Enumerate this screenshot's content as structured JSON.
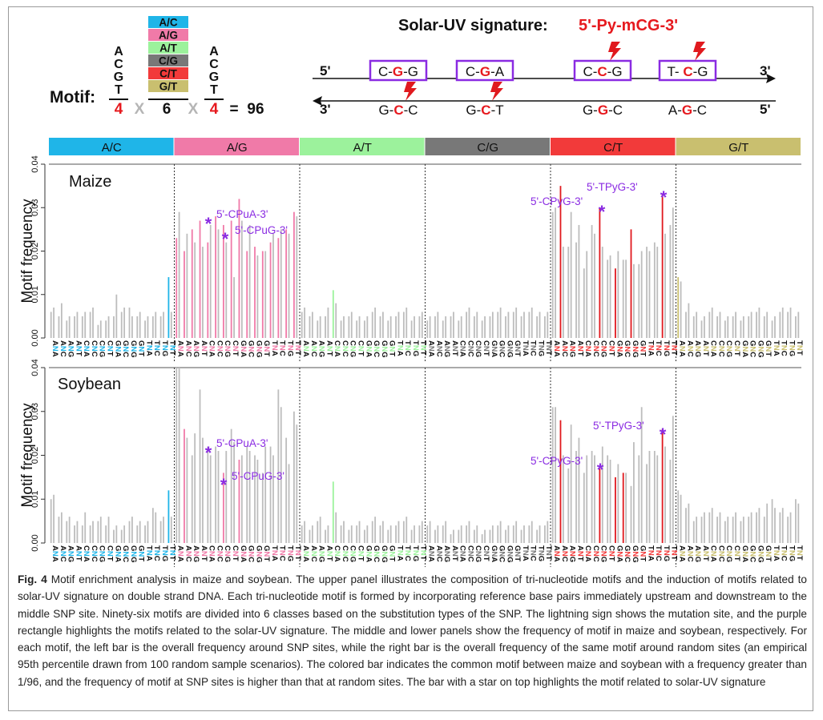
{
  "header": {
    "motif_label": "Motif:",
    "bases": [
      "A",
      "C",
      "G",
      "T"
    ],
    "count_left": "4",
    "times": "X",
    "count_mid": "6",
    "count_right": "4",
    "equals": "=",
    "total": "96",
    "solar_title": "Solar-UV signature:",
    "solar_motif": "5'-Py-mCG-3'",
    "top_strand_5": "5'",
    "top_strand_3": "3'",
    "bottom_strand_3": "3'",
    "bottom_strand_5": "5'",
    "top_motifs": [
      {
        "parts": [
          "C-",
          "G",
          "-G"
        ],
        "box": true,
        "bolt": false
      },
      {
        "parts": [
          "C-",
          "G",
          "-A"
        ],
        "box": true,
        "bolt": false
      },
      {
        "parts": [
          "C-",
          "C",
          "-G"
        ],
        "box": true,
        "bolt": true
      },
      {
        "parts": [
          "T- ",
          "C",
          "-G"
        ],
        "box": true,
        "bolt": true
      }
    ],
    "bottom_motifs": [
      {
        "parts": [
          "G-",
          "C",
          "-C"
        ],
        "bolt": true
      },
      {
        "parts": [
          "G-",
          "C",
          "-T"
        ],
        "bolt": true
      },
      {
        "parts": [
          "G-",
          "G",
          "-C"
        ],
        "bolt": false
      },
      {
        "parts": [
          "A-",
          "G",
          "-C"
        ],
        "bolt": false
      }
    ]
  },
  "colors": {
    "A/C": "#1fb5e8",
    "A/G": "#f07aa8",
    "A/T": "#9cf29c",
    "C/G": "#787878",
    "C/T": "#f23a3a",
    "G/T": "#c9bf6f",
    "grey_bar": "#bdbdbd",
    "red_bar": "#e0191e",
    "purple": "#8a2be2",
    "red_text": "#e6191e"
  },
  "chart_data": {
    "type": "bar",
    "classes": [
      "A/C",
      "A/G",
      "A/T",
      "C/G",
      "C/T",
      "G/T"
    ],
    "tick_labels": [
      "ANA",
      "ANC",
      "ANG",
      "ANT",
      "CNA",
      "CNC",
      "CNG",
      "CNT",
      "GNA",
      "GNC",
      "GNG",
      "GNT",
      "TNA",
      "TNC",
      "TNG",
      "TNT"
    ],
    "ylabel": "Motif frequency",
    "ylim": [
      0,
      0.04
    ],
    "yticks": [
      "0.00",
      "0.01",
      "0.02",
      "0.03",
      "0.04"
    ],
    "panels": [
      {
        "name": "Maize",
        "annotations": [
          "5'-CPuA-3'",
          "5'-CPuG-3'",
          "5'-CPyG-3'",
          "5'-TPyG-3'"
        ],
        "classes": [
          {
            "snp": [
              0.006,
              0.005,
              0.004,
              0.005,
              0.005,
              0.006,
              0.003,
              0.004,
              0.005,
              0.006,
              0.007,
              0.005,
              0.004,
              0.005,
              0.005,
              0.014
            ],
            "random": [
              0.007,
              0.008,
              0.005,
              0.006,
              0.006,
              0.007,
              0.004,
              0.005,
              0.01,
              0.007,
              0.005,
              0.006,
              0.005,
              0.006,
              0.006,
              0.006
            ]
          },
          {
            "snp": [
              0.023,
              0.02,
              0.025,
              0.027,
              0.022,
              0.028,
              0.026,
              0.027,
              0.032,
              0.02,
              0.021,
              0.02,
              0.022,
              0.023,
              0.025,
              0.029
            ],
            "random": [
              0.029,
              0.024,
              0.022,
              0.021,
              0.026,
              0.025,
              0.022,
              0.014,
              0.027,
              0.026,
              0.019,
              0.02,
              0.024,
              0.025,
              0.024,
              0.028
            ]
          },
          {
            "snp": [
              0.006,
              0.005,
              0.004,
              0.005,
              0.011,
              0.004,
              0.005,
              0.004,
              0.004,
              0.006,
              0.005,
              0.004,
              0.005,
              0.006,
              0.004,
              0.005
            ],
            "random": [
              0.007,
              0.006,
              0.005,
              0.007,
              0.008,
              0.005,
              0.006,
              0.005,
              0.005,
              0.007,
              0.006,
              0.005,
              0.006,
              0.007,
              0.005,
              0.006
            ]
          },
          {
            "snp": [
              0.004,
              0.005,
              0.004,
              0.005,
              0.004,
              0.006,
              0.005,
              0.004,
              0.005,
              0.006,
              0.005,
              0.006,
              0.005,
              0.006,
              0.005,
              0.005
            ],
            "random": [
              0.005,
              0.006,
              0.005,
              0.006,
              0.005,
              0.007,
              0.006,
              0.005,
              0.006,
              0.007,
              0.006,
              0.007,
              0.006,
              0.007,
              0.006,
              0.006
            ]
          },
          {
            "snp": [
              0.029,
              0.035,
              0.021,
              0.022,
              0.016,
              0.026,
              0.03,
              0.018,
              0.016,
              0.018,
              0.025,
              0.017,
              0.021,
              0.022,
              0.033,
              0.026
            ],
            "random": [
              0.03,
              0.021,
              0.029,
              0.026,
              0.02,
              0.024,
              0.021,
              0.019,
              0.02,
              0.018,
              0.017,
              0.02,
              0.02,
              0.021,
              0.024,
              0.03
            ]
          },
          {
            "snp": [
              0.014,
              0.006,
              0.005,
              0.004,
              0.006,
              0.005,
              0.004,
              0.005,
              0.004,
              0.005,
              0.006,
              0.005,
              0.004,
              0.006,
              0.006,
              0.005
            ],
            "random": [
              0.013,
              0.008,
              0.006,
              0.005,
              0.007,
              0.006,
              0.005,
              0.006,
              0.005,
              0.006,
              0.007,
              0.006,
              0.005,
              0.007,
              0.007,
              0.006
            ]
          }
        ],
        "highlight": [
          [
            false,
            false,
            false,
            false,
            false,
            false,
            false,
            false,
            false,
            false,
            false,
            false,
            false,
            false,
            false,
            true
          ],
          [
            true,
            true,
            true,
            true,
            true,
            true,
            true,
            true,
            true,
            true,
            true,
            true,
            true,
            true,
            true,
            true
          ],
          [
            false,
            false,
            false,
            false,
            true,
            false,
            false,
            false,
            false,
            false,
            false,
            false,
            false,
            false,
            false,
            false
          ],
          [
            false,
            false,
            false,
            false,
            false,
            false,
            false,
            false,
            false,
            false,
            false,
            false,
            false,
            false,
            false,
            false
          ],
          [
            false,
            true,
            false,
            false,
            false,
            false,
            true,
            false,
            true,
            false,
            true,
            false,
            false,
            false,
            true,
            false
          ],
          [
            true,
            false,
            false,
            false,
            false,
            false,
            false,
            false,
            false,
            false,
            false,
            false,
            false,
            false,
            false,
            false
          ]
        ]
      },
      {
        "name": "Soybean",
        "annotations": [
          "5'-CPuA-3'",
          "5'-CPuG-3'",
          "5'-CPyG-3'",
          "5'-TPyG-3'"
        ],
        "classes": [
          {
            "snp": [
              0.01,
              0.006,
              0.005,
              0.004,
              0.004,
              0.004,
              0.005,
              0.004,
              0.003,
              0.003,
              0.005,
              0.004,
              0.004,
              0.008,
              0.005,
              0.012
            ],
            "random": [
              0.011,
              0.007,
              0.006,
              0.005,
              0.007,
              0.005,
              0.006,
              0.006,
              0.004,
              0.004,
              0.006,
              0.005,
              0.005,
              0.007,
              0.006,
              0.006
            ]
          },
          {
            "snp": [
              0.04,
              0.026,
              0.02,
              0.035,
              0.022,
              0.022,
              0.016,
              0.026,
              0.019,
              0.022,
              0.02,
              0.016,
              0.022,
              0.035,
              0.024,
              0.03
            ],
            "random": [
              0.04,
              0.024,
              0.025,
              0.024,
              0.02,
              0.021,
              0.021,
              0.023,
              0.02,
              0.021,
              0.019,
              0.022,
              0.02,
              0.031,
              0.018,
              0.027
            ]
          },
          {
            "snp": [
              0.004,
              0.003,
              0.005,
              0.003,
              0.014,
              0.004,
              0.003,
              0.004,
              0.003,
              0.005,
              0.004,
              0.003,
              0.004,
              0.005,
              0.003,
              0.004
            ],
            "random": [
              0.005,
              0.004,
              0.006,
              0.004,
              0.007,
              0.005,
              0.004,
              0.005,
              0.004,
              0.006,
              0.005,
              0.004,
              0.005,
              0.006,
              0.004,
              0.005
            ]
          },
          {
            "snp": [
              0.004,
              0.003,
              0.004,
              0.002,
              0.003,
              0.004,
              0.003,
              0.002,
              0.003,
              0.004,
              0.003,
              0.004,
              0.003,
              0.004,
              0.003,
              0.004
            ],
            "random": [
              0.005,
              0.004,
              0.005,
              0.003,
              0.004,
              0.005,
              0.004,
              0.003,
              0.004,
              0.005,
              0.004,
              0.005,
              0.004,
              0.005,
              0.004,
              0.005
            ]
          },
          {
            "snp": [
              0.031,
              0.028,
              0.017,
              0.021,
              0.016,
              0.021,
              0.017,
              0.02,
              0.015,
              0.016,
              0.013,
              0.02,
              0.018,
              0.021,
              0.026,
              0.019
            ],
            "random": [
              0.031,
              0.02,
              0.027,
              0.024,
              0.02,
              0.02,
              0.022,
              0.019,
              0.018,
              0.016,
              0.023,
              0.031,
              0.021,
              0.02,
              0.022,
              0.029
            ]
          },
          {
            "snp": [
              0.012,
              0.008,
              0.005,
              0.006,
              0.007,
              0.006,
              0.005,
              0.006,
              0.005,
              0.006,
              0.007,
              0.006,
              0.01,
              0.007,
              0.006,
              0.01
            ],
            "random": [
              0.011,
              0.009,
              0.006,
              0.007,
              0.008,
              0.007,
              0.006,
              0.007,
              0.006,
              0.007,
              0.008,
              0.009,
              0.008,
              0.008,
              0.007,
              0.009
            ]
          }
        ],
        "highlight": [
          [
            false,
            false,
            false,
            false,
            false,
            false,
            false,
            false,
            false,
            false,
            false,
            false,
            false,
            false,
            false,
            true
          ],
          [
            false,
            true,
            false,
            false,
            false,
            false,
            true,
            false,
            true,
            false,
            false,
            false,
            false,
            false,
            false,
            false
          ],
          [
            false,
            false,
            false,
            false,
            true,
            false,
            false,
            false,
            false,
            false,
            false,
            false,
            false,
            false,
            false,
            false
          ],
          [
            false,
            false,
            false,
            false,
            false,
            false,
            false,
            false,
            false,
            false,
            false,
            false,
            false,
            false,
            false,
            false
          ],
          [
            false,
            true,
            false,
            false,
            false,
            false,
            true,
            false,
            true,
            true,
            false,
            false,
            false,
            false,
            true,
            false
          ],
          [
            false,
            false,
            false,
            false,
            false,
            false,
            false,
            false,
            false,
            false,
            false,
            false,
            false,
            false,
            false,
            false
          ]
        ]
      }
    ]
  },
  "caption": {
    "label": "Fig. 4",
    "text": " Motif enrichment analysis in maize and soybean. The upper panel illustrates the composition of tri-nucleotide motifs and the induction of motifs related to solar-UV signature on double strand DNA. Each tri-nucleotide motif is formed by incorporating reference base pairs immediately upstream and downstream to the middle SNP site. Ninety-six motifs are divided into 6 classes based on the substitution types of the SNP. The lightning sign shows the mutation site, and the purple rectangle highlights the motifs related to the solar-UV signature. The middle and lower panels show the frequency of motif in maize and soybean, respectively. For each motif, the left bar is the overall frequency around SNP sites, while the right bar is the overall frequency of the same motif around random sites (an empirical 95th percentile drawn from 100 random sample scenarios). The colored bar indicates the common motif between maize and soybean with a frequency greater than 1/96, and the frequency of motif at SNP sites is higher than that at random sites. The bar with a star on top highlights the motif related to solar-UV signature"
  }
}
